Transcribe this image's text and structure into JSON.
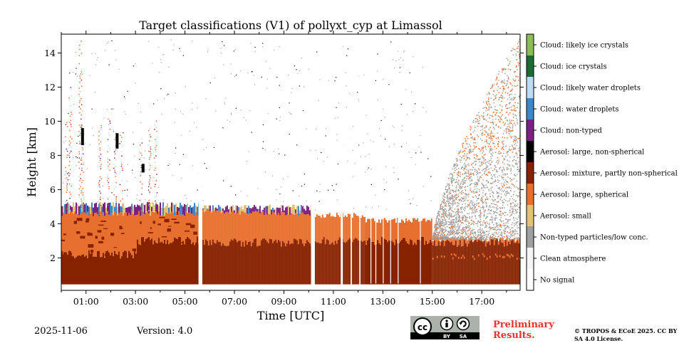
{
  "chart_data": {
    "type": "heatmap",
    "title": "Target classifications (V1) of pollyxt_cyp at Limassol",
    "xlabel": "Time [UTC]",
    "ylabel": "Height [km]",
    "xlim_hours": [
      0,
      18.55
    ],
    "ylim_km": [
      0.1,
      15.1
    ],
    "x_ticks": [
      {
        "h": 1,
        "label": "01:00"
      },
      {
        "h": 3,
        "label": "03:00"
      },
      {
        "h": 5,
        "label": "05:00"
      },
      {
        "h": 7,
        "label": "07:00"
      },
      {
        "h": 9,
        "label": "09:00"
      },
      {
        "h": 11,
        "label": "11:00"
      },
      {
        "h": 13,
        "label": "13:00"
      },
      {
        "h": 15,
        "label": "15:00"
      },
      {
        "h": 17,
        "label": "17:00"
      }
    ],
    "y_ticks": [
      {
        "v": 2,
        "label": "2"
      },
      {
        "v": 4,
        "label": "4"
      },
      {
        "v": 6,
        "label": "6"
      },
      {
        "v": 8,
        "label": "8"
      },
      {
        "v": 10,
        "label": "10"
      },
      {
        "v": 12,
        "label": "12"
      },
      {
        "v": 14,
        "label": "14"
      }
    ],
    "classes": [
      {
        "label": "No signal",
        "color": "#ffffff"
      },
      {
        "label": "Clean atmosphere",
        "color": "#f5f5f5"
      },
      {
        "label": "Non-typed particles/low conc.",
        "color": "#a0a0a0"
      },
      {
        "label": "Aerosol: small",
        "color": "#e2c274"
      },
      {
        "label": "Aerosol: large, spherical",
        "color": "#e8702e"
      },
      {
        "label": "Aerosol: mixture, partly non-spherical",
        "color": "#872200"
      },
      {
        "label": "Aerosol: large, non-spherical",
        "color": "#000000"
      },
      {
        "label": "Cloud: non-typed",
        "color": "#7d2181"
      },
      {
        "label": "Cloud: water droplets",
        "color": "#3e86c6"
      },
      {
        "label": "Cloud: likely water droplets",
        "color": "#bcdcf4"
      },
      {
        "label": "Cloud: ice crystals",
        "color": "#1c6b34"
      },
      {
        "label": "Cloud: likely ice crystals",
        "color": "#8cbb5a"
      }
    ],
    "regions": [
      {
        "t0": 0.0,
        "t1": 5.55,
        "base_km": 0.45,
        "mixture_top_km": 2.2,
        "aerosol_top_km": 4.6,
        "cloud_top_km": 5.2
      },
      {
        "t0": 5.7,
        "t1": 10.1,
        "base_km": 0.45,
        "mixture_top_km": 2.9,
        "aerosol_top_km": 4.75,
        "cloud_top_km": 4.9
      },
      {
        "t0": 10.25,
        "t1": 12.3,
        "base_km": 0.45,
        "mixture_top_km": 3.0,
        "aerosol_top_km": 4.5
      },
      {
        "t0": 12.3,
        "t1": 15.0,
        "base_km": 0.45,
        "mixture_top_km": 3.0,
        "aerosol_top_km": 4.2
      },
      {
        "t0": 15.0,
        "t1": 18.55,
        "base_km": 0.45,
        "mixture_top_km": 2.9,
        "aerosol_top_km": 3.1,
        "noise_top_km": 15.0
      }
    ],
    "gaps_hours": [
      [
        5.55,
        5.7
      ],
      [
        10.1,
        10.25
      ],
      [
        11.3,
        11.38
      ],
      [
        11.7,
        11.75
      ],
      [
        12.05,
        12.1
      ]
    ]
  },
  "footer": {
    "date": "2025-11-06",
    "version": "Version: 4.0",
    "preliminary": "Preliminary Results.",
    "copyright": "© TROPOS & ECoE 2025. CC BY SA 4.0 License.",
    "cc_label": "cc",
    "by_label": "BY",
    "sa_label": "SA"
  }
}
